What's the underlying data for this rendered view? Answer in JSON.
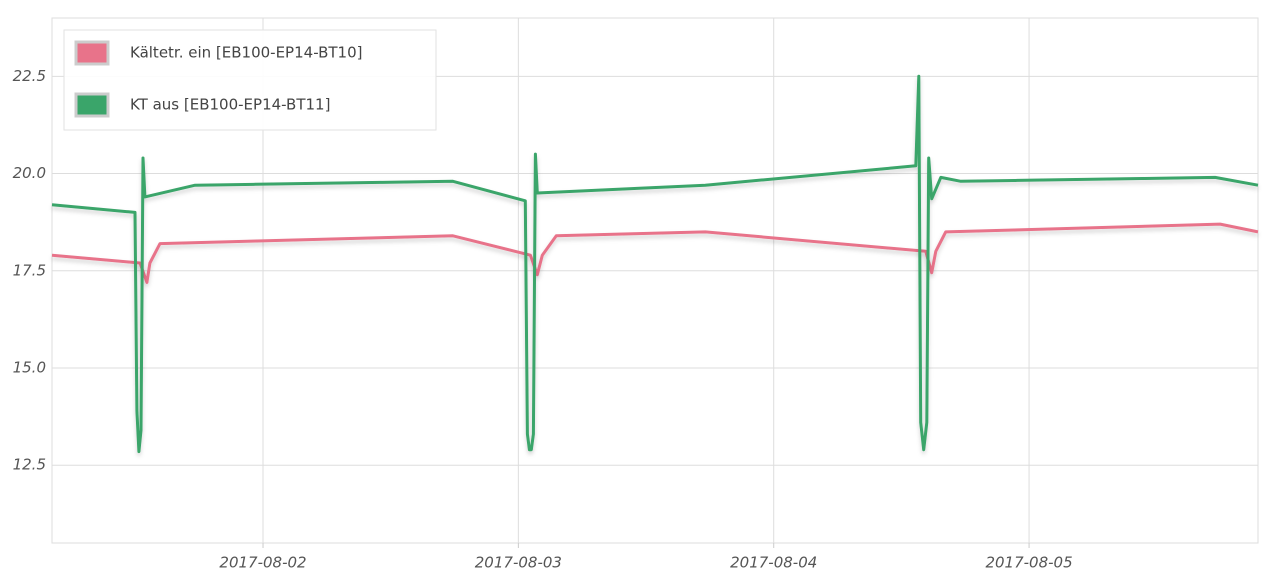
{
  "chart_data": {
    "type": "line",
    "xlim": [
      "2017-08-01T04:10",
      "2017-08-05T21:31"
    ],
    "xticks": [
      "2017-08-02",
      "2017-08-03",
      "2017-08-04",
      "2017-08-05"
    ],
    "ylim": [
      10.5,
      24
    ],
    "yticks": [
      12.5,
      {
        "value": 15,
        "label": "15.0"
      },
      17.5,
      {
        "value": 20,
        "label": "20.0"
      },
      22.5
    ],
    "grid": true,
    "legend": "top-left",
    "series": [
      {
        "name": "Kältetr. ein [EB100-EP14-BT10]",
        "color": "#e8738a",
        "x": [
          "2017-08-01T04:10",
          "2017-08-01T12:26",
          "2017-08-01T13:05",
          "2017-08-01T13:22",
          "2017-08-01T14:19",
          "2017-08-02T17:51",
          "2017-08-03T01:08",
          "2017-08-03T01:47",
          "2017-08-03T02:15",
          "2017-08-03T03:34",
          "2017-08-03T17:34",
          "2017-08-04T14:17",
          "2017-08-04T14:51",
          "2017-08-04T15:14",
          "2017-08-04T16:10",
          "2017-08-05T17:57",
          "2017-08-05T21:31"
        ],
        "values": [
          17.9,
          17.7,
          17.2,
          17.7,
          18.2,
          18.4,
          17.9,
          17.4,
          17.9,
          18.4,
          18.5,
          18.0,
          17.45,
          18.0,
          18.5,
          18.7,
          18.5
        ]
      },
      {
        "name": "KT aus [EB100-EP14-BT11]",
        "color": "#3aa56a",
        "x": [
          "2017-08-01T04:10",
          "2017-08-01T11:58",
          "2017-08-01T12:09",
          "2017-08-01T12:20",
          "2017-08-01T12:32",
          "2017-08-01T12:43",
          "2017-08-01T12:54",
          "2017-08-01T17:37",
          "2017-08-02T17:51",
          "2017-08-03T00:39",
          "2017-08-03T00:51",
          "2017-08-03T01:02",
          "2017-08-03T01:13",
          "2017-08-03T01:25",
          "2017-08-03T01:36",
          "2017-08-03T01:47",
          "2017-08-03T17:34",
          "2017-08-04T13:21",
          "2017-08-04T13:38",
          "2017-08-04T13:49",
          "2017-08-04T14:06",
          "2017-08-04T14:23",
          "2017-08-04T14:34",
          "2017-08-04T14:51",
          "2017-08-04T15:42",
          "2017-08-04T17:35",
          "2017-08-05T17:29",
          "2017-08-05T21:31"
        ],
        "values": [
          19.2,
          19.0,
          13.9,
          12.85,
          13.4,
          20.4,
          19.4,
          19.7,
          19.8,
          19.3,
          13.3,
          12.9,
          12.9,
          13.3,
          20.5,
          19.5,
          19.7,
          20.2,
          22.5,
          13.6,
          12.9,
          13.6,
          20.4,
          19.35,
          19.9,
          19.8,
          19.9,
          19.7
        ]
      }
    ]
  }
}
